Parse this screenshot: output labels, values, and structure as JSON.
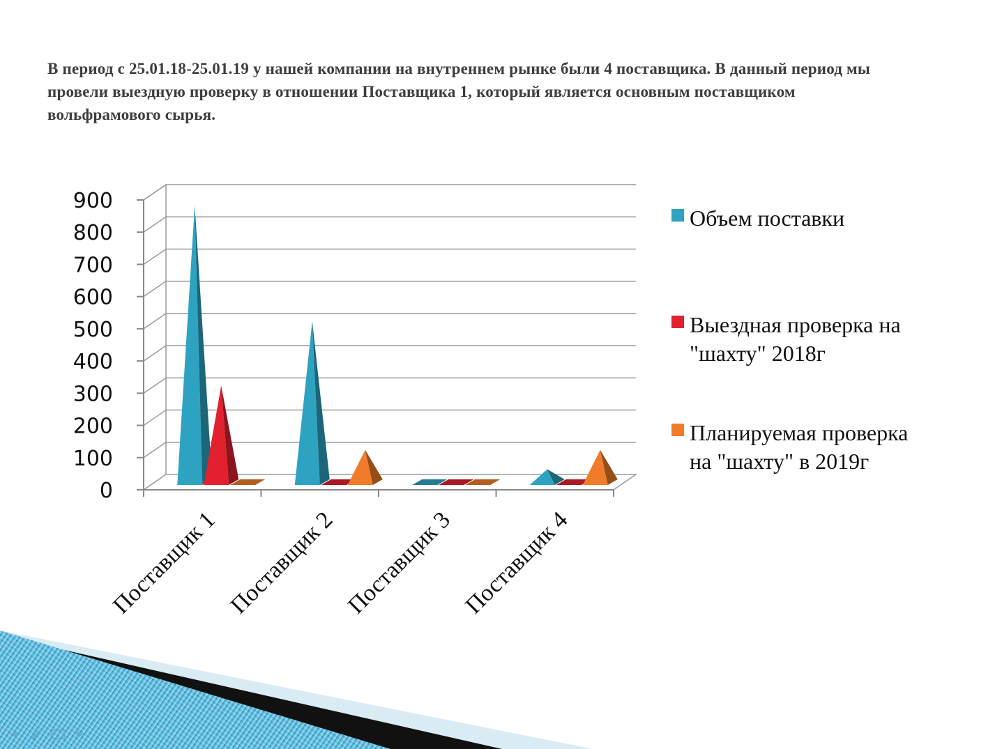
{
  "slide": {
    "intro_text": "В период с 25.01.18-25.01.19 у нашей компании на внутреннем рынке были 4 поставщика. В данный период мы провели выездную проверку в отношении Поставщика 1, который является основным поставщиком вольфрамового сырья."
  },
  "chart_data": {
    "type": "bar",
    "style": "3d-pyramid",
    "categories": [
      "Поставщик 1",
      "Поставщик 2",
      "Поставщик 3",
      "Поставщик 4"
    ],
    "series": [
      {
        "name": "Объем поставки",
        "color": "#2ea3c1",
        "values": [
          860,
          500,
          0,
          40
        ]
      },
      {
        "name": "Выездная проверка на \"шахту\" 2018г",
        "color": "#e2202e",
        "values": [
          300,
          0,
          0,
          0
        ]
      },
      {
        "name": "Планируемая проверка на \"шахту\" в 2019г",
        "color": "#f07c2a",
        "values": [
          0,
          100,
          0,
          100
        ]
      }
    ],
    "ylim": [
      0,
      900
    ],
    "yticks": [
      0,
      100,
      200,
      300,
      400,
      500,
      600,
      700,
      800,
      900
    ],
    "grid": true,
    "legend": "right",
    "title": "",
    "xlabel": "",
    "ylabel": ""
  }
}
